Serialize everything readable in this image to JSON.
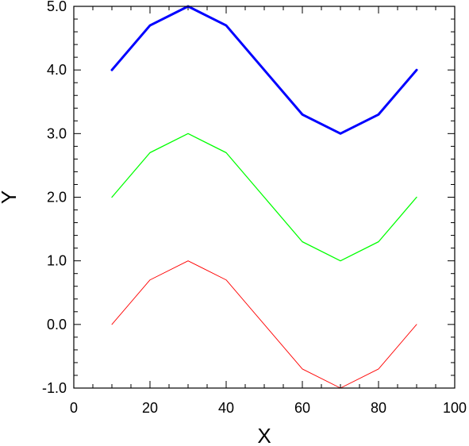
{
  "chart_data": {
    "type": "line",
    "title": "",
    "xlabel": "X",
    "ylabel": "Y",
    "xlim": [
      0,
      100
    ],
    "ylim": [
      -1.0,
      5.0
    ],
    "grid": false,
    "legend": "none",
    "xticks": [
      0,
      20,
      40,
      60,
      80,
      100
    ],
    "xtick_labels": [
      "0",
      "20",
      "40",
      "60",
      "80",
      "100"
    ],
    "yticks": [
      -1.0,
      0.0,
      1.0,
      2.0,
      3.0,
      4.0,
      5.0
    ],
    "ytick_labels": [
      "-1.0",
      "0.0",
      "1.0",
      "2.0",
      "3.0",
      "4.0",
      "5.0"
    ],
    "x": [
      10,
      20,
      30,
      40,
      50,
      60,
      70,
      80,
      90
    ],
    "series": [
      {
        "values": [
          4.0,
          4.7,
          5.0,
          4.7,
          4.0,
          3.3,
          3.0,
          3.3,
          4.0
        ],
        "color": "#0000ff"
      },
      {
        "values": [
          2.0,
          2.7,
          3.0,
          2.7,
          2.0,
          1.3,
          1.0,
          1.3,
          2.0
        ],
        "color": "#00ff00"
      },
      {
        "values": [
          0.0,
          0.7,
          1.0,
          0.7,
          0.0,
          -0.7,
          -1.0,
          -0.7,
          0.0
        ],
        "color": "#ff0000"
      }
    ]
  }
}
